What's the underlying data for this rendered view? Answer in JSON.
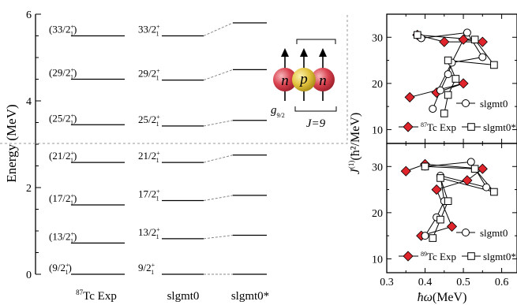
{
  "level_scheme": {
    "y_axis_label": "Energy (MeV)",
    "y_ticks": [
      "0",
      "2",
      "4",
      "6"
    ],
    "columns": [
      "87Tc Exp",
      "slgmt0",
      "slgmt0*"
    ],
    "column_display": {
      "exp_prefix": "87",
      "exp_suffix": "Tc Exp",
      "sm": "slgmt0",
      "sm_star": "slgmt0*"
    },
    "levels": [
      {
        "label_exp": "(9/2+1)",
        "label_sm": "9/2+1",
        "exp_MeV": 0.0,
        "slgmt0_MeV": 0.0,
        "slgmt0star_MeV": 0.0
      },
      {
        "label_exp": "(13/2+1)",
        "label_sm": "13/2+1",
        "exp_MeV": 0.72,
        "slgmt0_MeV": 0.82,
        "slgmt0star_MeV": 0.9
      },
      {
        "label_exp": "(17/2+1)",
        "label_sm": "17/2+1",
        "exp_MeV": 1.6,
        "slgmt0_MeV": 1.7,
        "slgmt0star_MeV": 1.82
      },
      {
        "label_exp": "(21/2+1)",
        "label_sm": "21/2+1",
        "exp_MeV": 2.58,
        "slgmt0_MeV": 2.58,
        "slgmt0star_MeV": 2.75
      },
      {
        "label_exp": "(25/2+1)",
        "label_sm": "25/2+1",
        "exp_MeV": 3.45,
        "slgmt0_MeV": 3.42,
        "slgmt0star_MeV": 3.55
      },
      {
        "label_exp": "(29/2+1)",
        "label_sm": "29/2+1",
        "exp_MeV": 4.5,
        "slgmt0_MeV": 4.48,
        "slgmt0star_MeV": 4.72
      },
      {
        "label_exp": "(33/2+1)",
        "label_sm": "33/2+1",
        "exp_MeV": 5.5,
        "slgmt0_MeV": 5.5,
        "slgmt0star_MeV": 5.8
      }
    ]
  },
  "inset": {
    "particles": [
      "n",
      "p",
      "n"
    ],
    "g_label": "g",
    "g_sub": "9/2",
    "j_label": "J=9",
    "colors": {
      "n": "#d9434f",
      "p": "#e3c440"
    }
  },
  "right_panels": {
    "x_label_prefix": "ħω",
    "x_label_suffix": "(MeV)",
    "x_ticks": [
      "0.3",
      "0.4",
      "0.5",
      "0.6"
    ],
    "xlim": [
      0.3,
      0.64
    ],
    "y_label_main": "J",
    "y_label_sup": "(1)",
    "y_label_rest": "(ħ²/MeV)",
    "y_ticks": [
      "10",
      "20",
      "30"
    ],
    "ylim": [
      7,
      35
    ],
    "legend_sm": "slgmt0",
    "legend_smstar": "slgmt0*",
    "marker_color": "#e0242b"
  },
  "chart_data": [
    {
      "type": "line",
      "panel": "top",
      "legend_exp_prefix": "87",
      "legend_exp_suffix": "Tc Exp",
      "series": [
        {
          "name": "87Tc Exp",
          "marker": "diamond",
          "points": [
            [
              0.36,
              17
            ],
            [
              0.5,
              20
            ],
            [
              0.43,
              18
            ],
            [
              0.5,
              29.5
            ],
            [
              0.55,
              29
            ],
            [
              0.45,
              29
            ],
            [
              0.38,
              30.5
            ]
          ]
        },
        {
          "name": "slgmt0",
          "marker": "circle",
          "points": [
            [
              0.42,
              14.5
            ],
            [
              0.44,
              18.5
            ],
            [
              0.46,
              22
            ],
            [
              0.47,
              24.5
            ],
            [
              0.55,
              25.7
            ],
            [
              0.51,
              31
            ],
            [
              0.39,
              29.8
            ]
          ]
        },
        {
          "name": "slgmt0*",
          "marker": "square",
          "points": [
            [
              0.45,
              13.5
            ],
            [
              0.46,
              17.5
            ],
            [
              0.48,
              21
            ],
            [
              0.46,
              25
            ],
            [
              0.58,
              24
            ],
            [
              0.53,
              29.5
            ],
            [
              0.38,
              30.5
            ]
          ]
        }
      ]
    },
    {
      "type": "line",
      "panel": "bottom",
      "legend_exp_prefix": "89",
      "legend_exp_suffix": "Tc Exp",
      "series": [
        {
          "name": "89Tc Exp",
          "marker": "diamond",
          "points": [
            [
              0.39,
              15
            ],
            [
              0.47,
              17
            ],
            [
              0.43,
              25
            ],
            [
              0.51,
              27
            ],
            [
              0.55,
              29.5
            ],
            [
              0.4,
              30.5
            ],
            [
              0.35,
              29
            ]
          ]
        },
        {
          "name": "slgmt0",
          "marker": "circle",
          "points": [
            [
              0.4,
              15
            ],
            [
              0.43,
              19
            ],
            [
              0.45,
              22.5
            ],
            [
              0.44,
              28
            ],
            [
              0.56,
              25.5
            ],
            [
              0.52,
              31
            ],
            [
              0.4,
              30
            ]
          ]
        },
        {
          "name": "slgmt0*",
          "marker": "square",
          "points": [
            [
              0.42,
              14.5
            ],
            [
              0.44,
              18.5
            ],
            [
              0.46,
              22.5
            ],
            [
              0.44,
              27.5
            ],
            [
              0.58,
              24.5
            ],
            [
              0.53,
              29.5
            ],
            [
              0.4,
              30
            ]
          ]
        }
      ]
    }
  ]
}
